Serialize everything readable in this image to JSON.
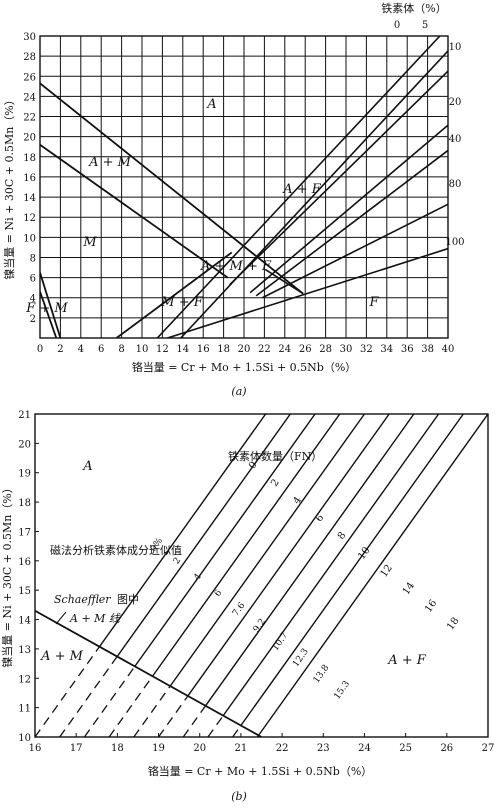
{
  "chart_data": [
    {
      "id": "a",
      "type": "line",
      "title": "",
      "caption": "(a)",
      "xlabel": "铬当量 = Cr + Mo + 1.5Si + 0.5Nb（%）",
      "ylabel": "镍当量 = Ni + 30C + 0.5Mn（%）",
      "xlim": [
        0,
        40
      ],
      "ylim": [
        0,
        30
      ],
      "xticks": [
        "0",
        "2",
        "4",
        "6",
        "8",
        "10",
        "12",
        "14",
        "16",
        "18",
        "20",
        "22",
        "24",
        "26",
        "28",
        "30",
        "32",
        "34",
        "36",
        "38",
        "40"
      ],
      "yticks": [
        "2",
        "4",
        "6",
        "8",
        "10",
        "12",
        "14",
        "16",
        "18",
        "20",
        "22",
        "24",
        "26",
        "28",
        "30"
      ],
      "grid": true,
      "ferrite_header": "铁素体（%）",
      "ferrite_lines": [
        {
          "label": "0",
          "points": [
            [
              11.5,
              0
            ],
            [
              39.2,
              30
            ]
          ]
        },
        {
          "label": "5",
          "points": [
            [
              13.8,
              0
            ],
            [
              41,
              29.6
            ]
          ]
        },
        {
          "label": "10",
          "points": [
            [
              18.6,
              5.3
            ],
            [
              41,
              27.5
            ]
          ]
        },
        {
          "label": "20",
          "points": [
            [
              20.6,
              4.5
            ],
            [
              41,
              22
            ]
          ]
        },
        {
          "label": "40",
          "points": [
            [
              21.2,
              4.2
            ],
            [
              41,
              19.4
            ]
          ]
        },
        {
          "label": "80",
          "points": [
            [
              21.8,
              4
            ],
            [
              41,
              13.8
            ]
          ]
        },
        {
          "label": "100",
          "points": [
            [
              12.5,
              0
            ],
            [
              41,
              9.2
            ]
          ]
        }
      ],
      "boundary_lines": [
        {
          "name": "A/A+M",
          "points": [
            [
              0,
              25.3
            ],
            [
              25.8,
              4.4
            ]
          ]
        },
        {
          "name": "A+M/M",
          "points": [
            [
              0,
              19.2
            ],
            [
              18.4,
              6
            ]
          ]
        },
        {
          "name": "M/M+F",
          "points": [
            [
              7.5,
              0
            ],
            [
              18.8,
              8.5
            ]
          ]
        },
        {
          "name": "M/F+M",
          "points": [
            [
              0,
              6.5
            ],
            [
              2,
              0
            ]
          ]
        },
        {
          "name": "F+M",
          "points": [
            [
              0,
              4.6
            ],
            [
              1.6,
              0
            ]
          ]
        }
      ],
      "regions": [
        "A",
        "A + M",
        "M",
        "A + F",
        "A + M + F",
        "M + F",
        "F",
        "F + M"
      ]
    },
    {
      "id": "b",
      "type": "line",
      "title": "",
      "caption": "(b)",
      "xlabel": "铬当量 = Cr + Mo + 1.5Si + 0.5Nb（%）",
      "ylabel": "镍当量 = Ni + 30C + 0.5Mn（%）",
      "xlim": [
        16,
        27
      ],
      "ylim": [
        10,
        21
      ],
      "xticks": [
        "16",
        "17",
        "18",
        "19",
        "20",
        "21",
        "22",
        "23",
        "24",
        "25",
        "26",
        "27"
      ],
      "yticks": [
        "10",
        "11",
        "12",
        "13",
        "14",
        "15",
        "16",
        "17",
        "18",
        "19",
        "20",
        "21"
      ],
      "grid": false,
      "fn_header": "铁素体数量（FN）",
      "fn_numbers": [
        "0",
        "2",
        "4",
        "6",
        "8",
        "10",
        "12",
        "14",
        "16",
        "18"
      ],
      "percent_header": "磁法分析铁素体成分近似值",
      "percent_numbers": [
        "0%",
        "2",
        "4",
        "6",
        "7.6",
        "9.2",
        "10.7",
        "12.3",
        "13.8",
        "15.3"
      ],
      "fn_line_x_at_10": [
        16.0,
        16.6,
        17.2,
        17.8,
        18.4,
        19.0,
        19.6,
        20.2,
        20.8,
        21.4
      ],
      "fn_line_x_at_21": [
        21.6,
        22.2,
        22.8,
        23.4,
        24.0,
        24.6,
        25.2,
        25.8,
        26.4,
        27.0
      ],
      "boundary": {
        "name": "Schaeffler 图中 A + M 线",
        "points": [
          [
            16,
            14.3
          ],
          [
            21.5,
            10
          ]
        ]
      },
      "annotation_italic": "Schaeffler",
      "annotation_rest": "图中",
      "annotation_line2": "A + M 线",
      "regions": [
        "A",
        "A + M",
        "A + F"
      ]
    }
  ]
}
